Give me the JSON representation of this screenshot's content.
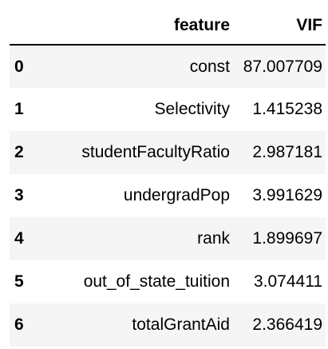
{
  "table": {
    "columns": [
      "",
      "feature",
      "VIF"
    ],
    "rows": [
      {
        "index": "0",
        "feature": "const",
        "vif": "87.007709"
      },
      {
        "index": "1",
        "feature": "Selectivity",
        "vif": "1.415238"
      },
      {
        "index": "2",
        "feature": "studentFacultyRatio",
        "vif": "2.987181"
      },
      {
        "index": "3",
        "feature": "undergradPop",
        "vif": "3.991629"
      },
      {
        "index": "4",
        "feature": "rank",
        "vif": "1.899697"
      },
      {
        "index": "5",
        "feature": "out_of_state_tuition",
        "vif": "3.074411"
      },
      {
        "index": "6",
        "feature": "totalGrantAid",
        "vif": "2.366419"
      }
    ]
  },
  "colors": {
    "stripe": "#f5f5f5",
    "text": "#000000",
    "background": "#ffffff"
  }
}
